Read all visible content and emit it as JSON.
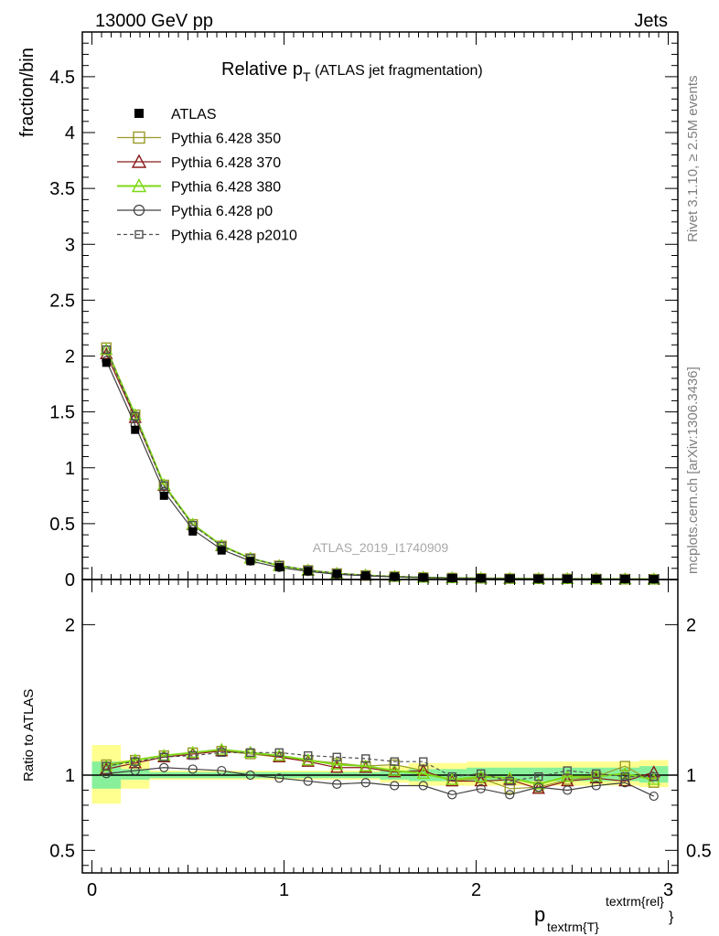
{
  "header": {
    "left": "13000 GeV pp",
    "right": "Jets"
  },
  "side_labels": {
    "version": "Rivet 3.1.10, ≥ 2.5M events",
    "source": "mcplots.cern.ch [arXiv:1306.3436]"
  },
  "chart_data": {
    "type": "line",
    "title_main": "Relative p",
    "title_sub": "T",
    "title_rest": " (ATLAS jet fragmentation)",
    "watermark": "ATLAS_2019_I1740909",
    "ylabel": "fraction/bin",
    "ratio_ylabel": "Ratio to ATLAS",
    "xlabel_main": "p",
    "xlabel_sub": "textrm{T}",
    "xlabel_sup": "textrm{rel}",
    "xlabel_close": "}",
    "xlim": [
      -0.05,
      3.05
    ],
    "ylim": [
      0,
      4.9
    ],
    "ratio_ylim": [
      0.35,
      2.3
    ],
    "x_ticks": [
      "0",
      "1",
      "2",
      "3"
    ],
    "y_ticks": [
      "0",
      "0.5",
      "1",
      "1.5",
      "2",
      "2.5",
      "3",
      "3.5",
      "4",
      "4.5"
    ],
    "ratio_y_ticks": [
      "0.5",
      "1",
      "2"
    ],
    "x": [
      0.075,
      0.225,
      0.375,
      0.525,
      0.675,
      0.825,
      0.975,
      1.125,
      1.275,
      1.425,
      1.575,
      1.725,
      1.875,
      2.025,
      2.175,
      2.325,
      2.475,
      2.625,
      2.775,
      2.925
    ],
    "data": [
      1.94,
      1.34,
      0.75,
      0.43,
      0.26,
      0.165,
      0.11,
      0.075,
      0.05,
      0.035,
      0.025,
      0.018,
      0.014,
      0.011,
      0.009,
      0.007,
      0.006,
      0.005,
      0.004,
      0.003
    ],
    "data_band": {
      "x_edges": [
        0,
        0.15,
        0.3,
        0.45,
        0.6,
        0.75,
        0.9,
        1.05,
        1.2,
        1.35,
        1.5,
        1.65,
        1.8,
        1.95,
        2.1,
        2.25,
        2.4,
        2.55,
        2.7,
        2.85,
        3.0
      ],
      "inner_lo": [
        0.91,
        0.97,
        0.98,
        0.98,
        0.98,
        0.98,
        0.98,
        0.98,
        0.98,
        0.98,
        0.97,
        0.96,
        0.96,
        0.96,
        0.96,
        0.96,
        0.96,
        0.96,
        0.96,
        0.95
      ],
      "inner_hi": [
        1.09,
        1.04,
        1.02,
        1.02,
        1.02,
        1.02,
        1.02,
        1.02,
        1.02,
        1.02,
        1.03,
        1.04,
        1.04,
        1.05,
        1.05,
        1.05,
        1.05,
        1.05,
        1.05,
        1.06
      ],
      "outer_lo": [
        0.81,
        0.91,
        0.97,
        0.97,
        0.97,
        0.97,
        0.97,
        0.97,
        0.97,
        0.97,
        0.95,
        0.93,
        0.93,
        0.93,
        0.93,
        0.93,
        0.93,
        0.93,
        0.93,
        0.92
      ],
      "outer_hi": [
        1.2,
        1.1,
        1.03,
        1.03,
        1.03,
        1.03,
        1.03,
        1.03,
        1.03,
        1.03,
        1.06,
        1.08,
        1.08,
        1.09,
        1.09,
        1.09,
        1.09,
        1.09,
        1.09,
        1.1
      ]
    },
    "series": [
      {
        "name": "ATLAS",
        "style": "data",
        "color": "#000000"
      },
      {
        "name": "Pythia 6.428 350",
        "style": "solid",
        "marker": "square",
        "color": "#9a9a28",
        "ratio": [
          1.07,
          1.1,
          1.13,
          1.15,
          1.16,
          1.14,
          1.12,
          1.1,
          1.08,
          1.06,
          1.07,
          1.03,
          0.96,
          0.98,
          0.91,
          0.92,
          0.97,
          0.99,
          1.06,
          0.95
        ]
      },
      {
        "name": "Pythia 6.428 370",
        "style": "solid",
        "marker": "triangle",
        "color": "#8b1a1a",
        "ratio": [
          1.04,
          1.08,
          1.12,
          1.14,
          1.16,
          1.15,
          1.12,
          1.09,
          1.05,
          1.05,
          1.02,
          1.03,
          0.96,
          0.96,
          0.97,
          0.91,
          0.96,
          0.98,
          0.96,
          1.02
        ]
      },
      {
        "name": "Pythia 6.428 380",
        "style": "solid",
        "marker": "triangle",
        "color": "#7fd818",
        "ratio": [
          1.06,
          1.1,
          1.13,
          1.15,
          1.17,
          1.15,
          1.13,
          1.1,
          1.07,
          1.06,
          1.03,
          1.01,
          0.97,
          0.99,
          0.98,
          0.94,
          0.99,
          0.99,
          1.01,
          0.97
        ]
      },
      {
        "name": "Pythia 6.428 p0",
        "style": "solid",
        "marker": "circle",
        "color": "#404040",
        "ratio": [
          1.01,
          1.03,
          1.05,
          1.04,
          1.03,
          1.0,
          0.98,
          0.96,
          0.94,
          0.95,
          0.93,
          0.93,
          0.87,
          0.91,
          0.87,
          0.92,
          0.9,
          0.93,
          0.95,
          0.86
        ]
      },
      {
        "name": "Pythia 6.428 p2010",
        "style": "dashed",
        "marker": "square",
        "color": "#505050",
        "ratio": [
          1.06,
          1.09,
          1.12,
          1.13,
          1.15,
          1.15,
          1.15,
          1.13,
          1.12,
          1.11,
          1.09,
          1.09,
          0.99,
          1.01,
          0.96,
          0.99,
          1.03,
          1.01,
          0.99,
          0.99
        ]
      }
    ],
    "ratio_reference": 1
  }
}
